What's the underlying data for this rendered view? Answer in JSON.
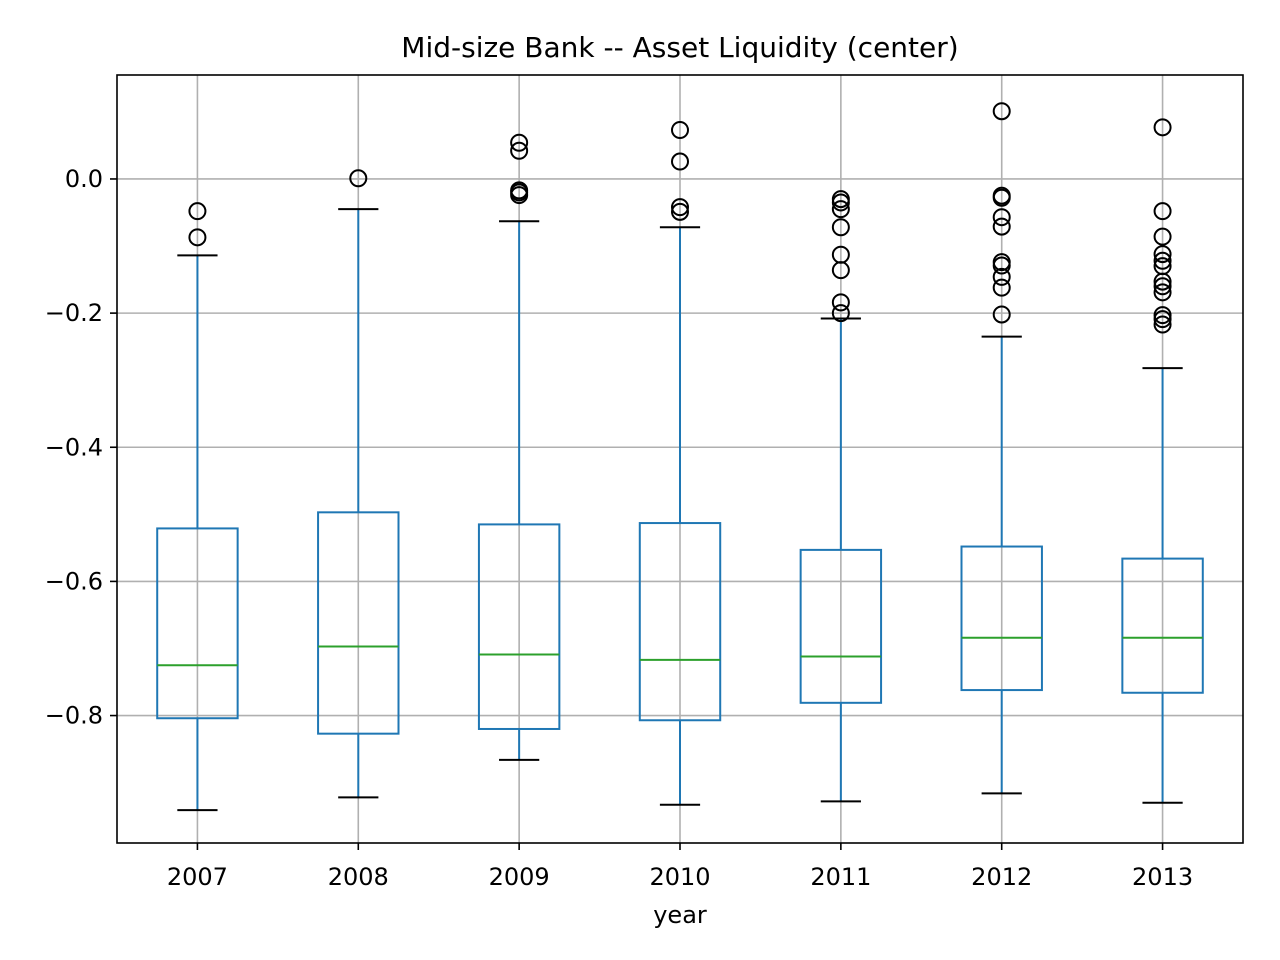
{
  "chart_data": {
    "type": "box",
    "title": "Mid-size Bank -- Asset Liquidity (center)",
    "xlabel": "year",
    "ylabel": "",
    "ylim": [
      -0.99,
      0.155
    ],
    "yticks": [
      0.0,
      -0.2,
      -0.4,
      -0.6,
      -0.8
    ],
    "ytick_labels": [
      "0.0",
      "−0.2",
      "−0.4",
      "−0.6",
      "−0.8"
    ],
    "grid": true,
    "categories": [
      "2007",
      "2008",
      "2009",
      "2010",
      "2011",
      "2012",
      "2013"
    ],
    "boxes": [
      {
        "category": "2007",
        "whisker_low": -0.941,
        "q1": -0.804,
        "median": -0.725,
        "q3": -0.521,
        "whisker_high": -0.114,
        "outliers": [
          -0.048,
          -0.087
        ]
      },
      {
        "category": "2008",
        "whisker_low": -0.922,
        "q1": -0.827,
        "median": -0.697,
        "q3": -0.497,
        "whisker_high": -0.045,
        "outliers": [
          0.001
        ]
      },
      {
        "category": "2009",
        "whisker_low": -0.866,
        "q1": -0.82,
        "median": -0.709,
        "q3": -0.515,
        "whisker_high": -0.063,
        "outliers": [
          0.054,
          0.042,
          -0.017,
          -0.02,
          -0.024
        ]
      },
      {
        "category": "2010",
        "whisker_low": -0.933,
        "q1": -0.807,
        "median": -0.717,
        "q3": -0.513,
        "whisker_high": -0.072,
        "outliers": [
          0.073,
          0.026,
          -0.042,
          -0.049
        ]
      },
      {
        "category": "2011",
        "whisker_low": -0.928,
        "q1": -0.781,
        "median": -0.712,
        "q3": -0.553,
        "whisker_high": -0.208,
        "outliers": [
          -0.03,
          -0.035,
          -0.045,
          -0.072,
          -0.113,
          -0.136,
          -0.184,
          -0.2
        ]
      },
      {
        "category": "2012",
        "whisker_low": -0.916,
        "q1": -0.762,
        "median": -0.684,
        "q3": -0.548,
        "whisker_high": -0.235,
        "outliers": [
          0.101,
          -0.025,
          -0.028,
          -0.057,
          -0.071,
          -0.124,
          -0.129,
          -0.146,
          -0.162,
          -0.202
        ]
      },
      {
        "category": "2013",
        "whisker_low": -0.93,
        "q1": -0.766,
        "median": -0.684,
        "q3": -0.566,
        "whisker_high": -0.282,
        "outliers": [
          0.077,
          -0.048,
          -0.086,
          -0.112,
          -0.122,
          -0.13,
          -0.153,
          -0.16,
          -0.169,
          -0.203,
          -0.209,
          -0.217
        ]
      }
    ],
    "colors": {
      "box": "#1f77b4",
      "median": "#2ca02c",
      "whisker_cap": "#000000",
      "outlier": "#000000",
      "grid": "#b0b0b0"
    }
  }
}
